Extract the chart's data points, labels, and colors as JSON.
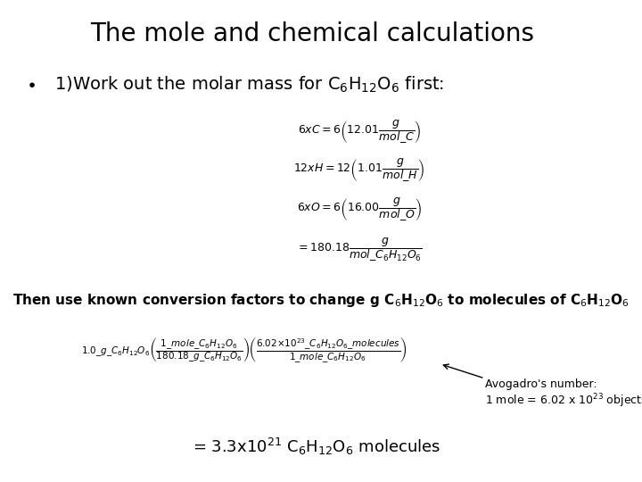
{
  "title": "The mole and chemical calculations",
  "background_color": "#ffffff",
  "title_fontsize": 20,
  "bullet_fontsize": 14,
  "eq_fontsize": 9,
  "conversion_fontsize": 11,
  "result_fontsize": 13,
  "avogadro_fontsize": 9
}
